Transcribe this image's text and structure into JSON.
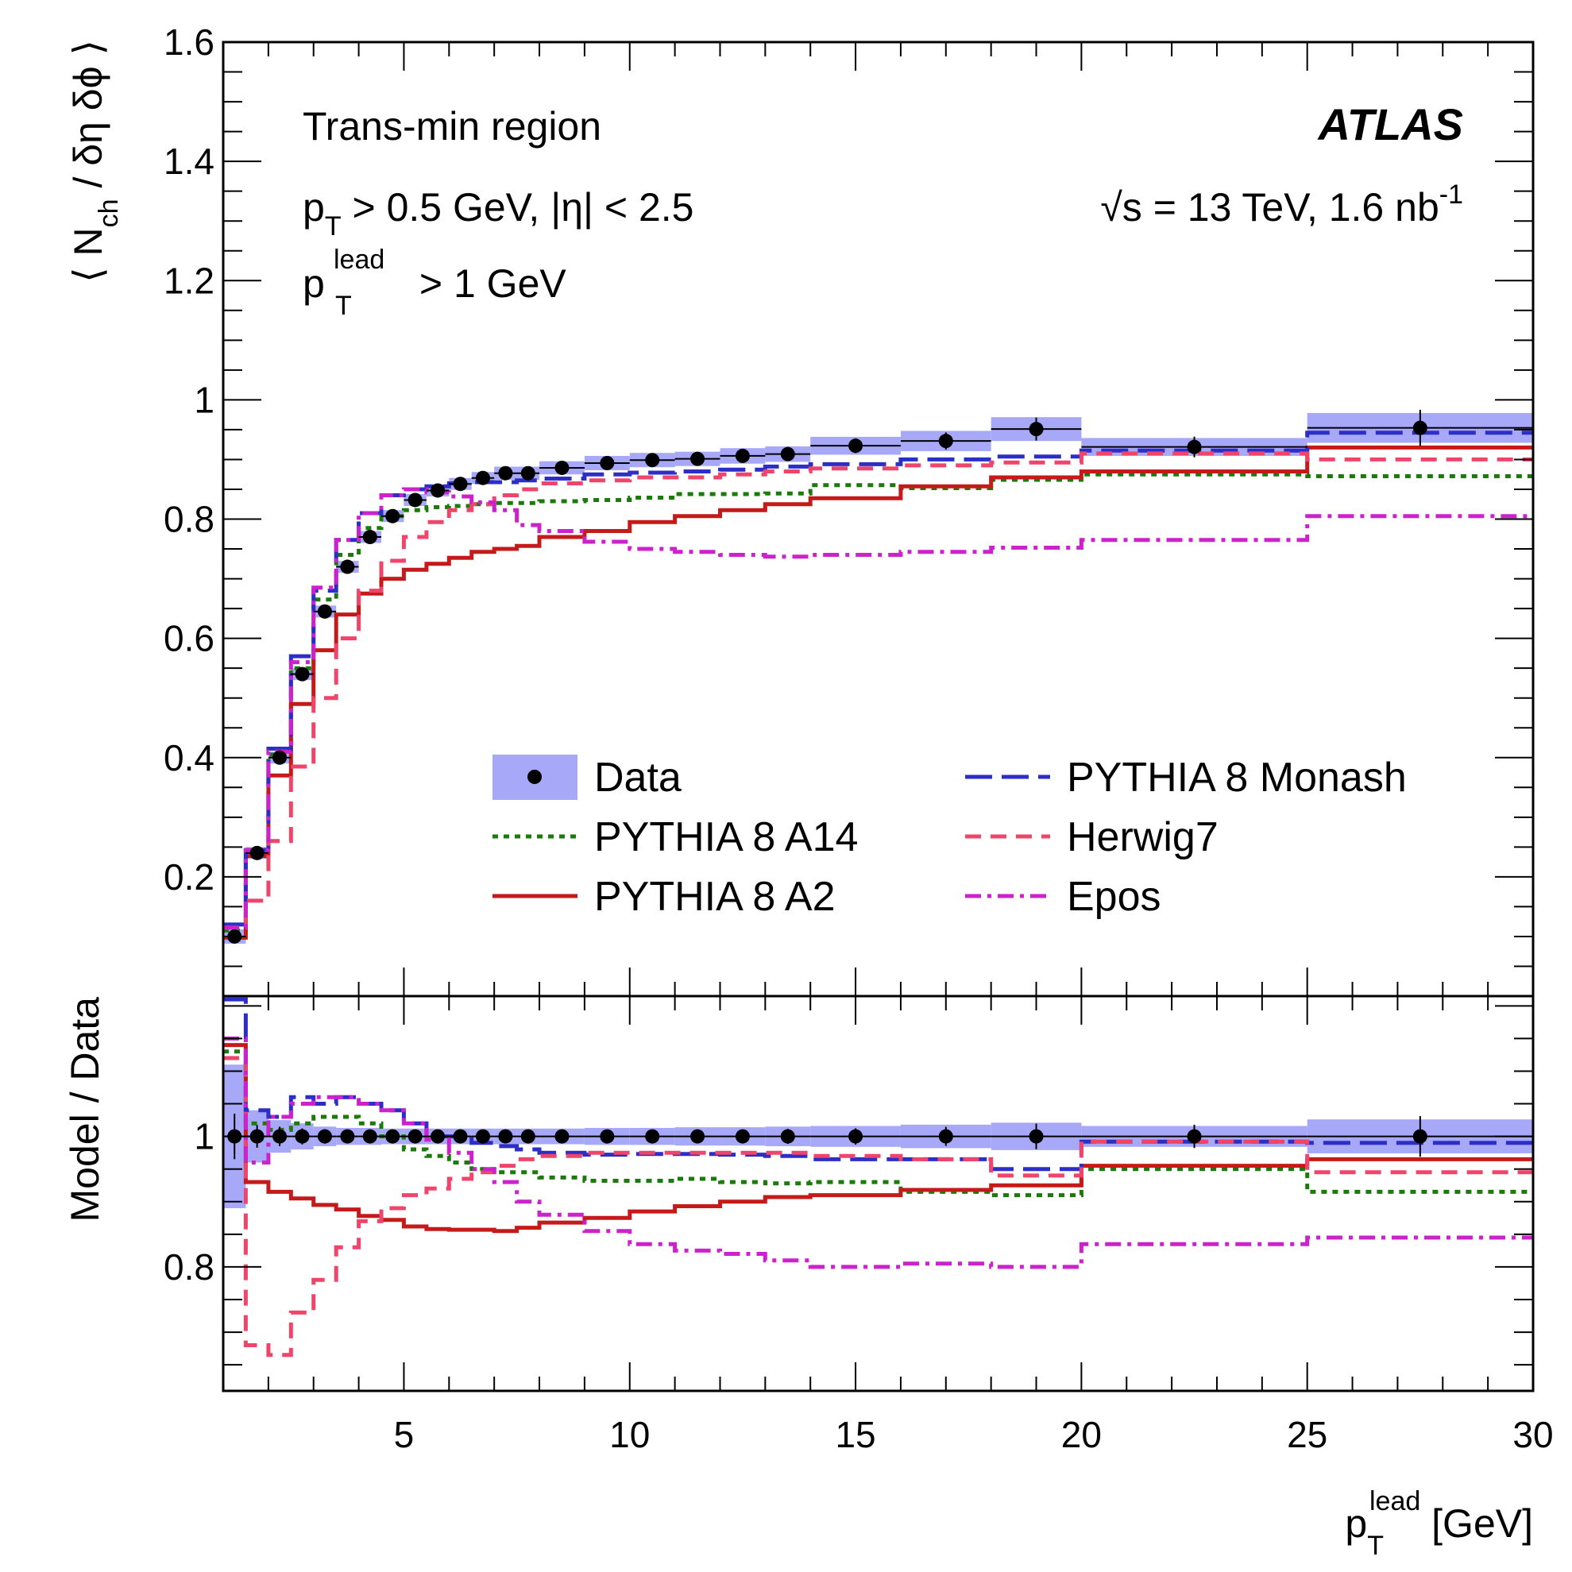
{
  "chart_data": {
    "type": "line",
    "title": "",
    "experiment_label": "ATLAS",
    "annotations": {
      "region": "Trans-min region",
      "cut_pt": "p",
      "cut_pt_sub": "T",
      "cut_rest": " > 0.5 GeV, |η| < 2.5",
      "cut_lead_p": "p",
      "cut_lead_sub": "T",
      "cut_lead_sup": "lead",
      "cut_lead_rest": " > 1 GeV",
      "energy_prefix": "√s = 13 TeV, 1.6 nb",
      "energy_exp": "-1"
    },
    "xlabel": {
      "main": "p",
      "sub": "T",
      "sup": "lead",
      "unit": " [GeV]"
    },
    "ylabel_top": {
      "open": "⟨ N",
      "sub": "ch",
      "rest": " / δη δϕ ⟩"
    },
    "ylabel_bottom": "Model / Data",
    "xlim": [
      1,
      30
    ],
    "ylim_top": [
      0,
      1.6
    ],
    "ylim_bottom": [
      0.61,
      1.215
    ],
    "xticks": [
      5,
      10,
      15,
      20,
      25,
      30
    ],
    "xtick_labels": [
      "5",
      "10",
      "15",
      "20",
      "25",
      "30"
    ],
    "yticks_top": [
      0.2,
      0.4,
      0.6,
      0.8,
      1.0,
      1.2,
      1.4,
      1.6
    ],
    "ytick_labels_top": [
      "0.2",
      "0.4",
      "0.6",
      "0.8",
      "1",
      "1.2",
      "1.4",
      "1.6"
    ],
    "yticks_bottom": [
      0.8,
      1.0
    ],
    "ytick_labels_bottom": [
      "0.8",
      "1"
    ],
    "bin_edges": [
      1,
      1.5,
      2,
      2.5,
      3,
      3.5,
      4,
      4.5,
      5,
      5.5,
      6,
      6.5,
      7,
      7.5,
      8,
      9,
      10,
      11,
      12,
      13,
      14,
      16,
      18,
      20,
      25,
      30
    ],
    "data": {
      "name": "Data",
      "x": [
        1.25,
        1.75,
        2.25,
        2.75,
        3.25,
        3.75,
        4.25,
        4.75,
        5.25,
        5.75,
        6.25,
        6.75,
        7.25,
        7.75,
        8.5,
        9.5,
        10.5,
        11.5,
        12.5,
        13.5,
        15,
        17,
        19,
        22.5,
        27.5
      ],
      "y": [
        0.1,
        0.24,
        0.4,
        0.54,
        0.645,
        0.72,
        0.77,
        0.805,
        0.832,
        0.848,
        0.859,
        0.869,
        0.877,
        0.877,
        0.886,
        0.894,
        0.899,
        0.901,
        0.906,
        0.909,
        0.923,
        0.931,
        0.951,
        0.921,
        0.953
      ],
      "band": [
        0.012,
        0.01,
        0.01,
        0.01,
        0.01,
        0.01,
        0.01,
        0.01,
        0.01,
        0.01,
        0.01,
        0.01,
        0.011,
        0.011,
        0.011,
        0.012,
        0.012,
        0.012,
        0.013,
        0.013,
        0.015,
        0.017,
        0.02,
        0.015,
        0.025
      ],
      "yerr": [
        0.003,
        0.003,
        0.004,
        0.004,
        0.004,
        0.004,
        0.004,
        0.004,
        0.004,
        0.004,
        0.004,
        0.004,
        0.004,
        0.004,
        0.004,
        0.005,
        0.005,
        0.005,
        0.005,
        0.006,
        0.007,
        0.009,
        0.014,
        0.012,
        0.025
      ],
      "ratio_band": [
        0.11,
        0.04,
        0.025,
        0.02,
        0.015,
        0.013,
        0.013,
        0.012,
        0.012,
        0.012,
        0.012,
        0.012,
        0.012,
        0.012,
        0.012,
        0.013,
        0.013,
        0.014,
        0.014,
        0.015,
        0.016,
        0.018,
        0.021,
        0.016,
        0.026
      ]
    },
    "series": [
      {
        "name": "PYTHIA 8 A14",
        "style": "dotted",
        "color": "#1a7a0a",
        "values": [
          0.11,
          0.245,
          0.405,
          0.55,
          0.665,
          0.74,
          0.785,
          0.805,
          0.815,
          0.82,
          0.822,
          0.825,
          0.827,
          0.827,
          0.83,
          0.832,
          0.836,
          0.842,
          0.842,
          0.843,
          0.857,
          0.852,
          0.866,
          0.875,
          0.872
        ],
        "ratio": [
          1.13,
          1.02,
          1.01,
          1.02,
          1.03,
          1.03,
          1.02,
          1.0,
          0.98,
          0.97,
          0.96,
          0.95,
          0.945,
          0.945,
          0.937,
          0.932,
          0.932,
          0.935,
          0.93,
          0.928,
          0.93,
          0.915,
          0.91,
          0.95,
          0.915
        ]
      },
      {
        "name": "PYTHIA 8 A2",
        "style": "solid",
        "color": "#c41a1a",
        "values": [
          0.098,
          0.235,
          0.37,
          0.49,
          0.58,
          0.64,
          0.675,
          0.7,
          0.715,
          0.725,
          0.735,
          0.745,
          0.75,
          0.755,
          0.77,
          0.78,
          0.795,
          0.805,
          0.815,
          0.825,
          0.835,
          0.855,
          0.87,
          0.88,
          0.92
        ],
        "ratio": [
          1.14,
          0.93,
          0.915,
          0.905,
          0.895,
          0.888,
          0.878,
          0.872,
          0.862,
          0.858,
          0.857,
          0.857,
          0.855,
          0.86,
          0.868,
          0.875,
          0.885,
          0.893,
          0.9,
          0.907,
          0.91,
          0.918,
          0.925,
          0.955,
          0.965
        ]
      },
      {
        "name": "PYTHIA 8 Monash",
        "style": "longdash",
        "color": "#2d2dc8",
        "values": [
          0.12,
          0.245,
          0.415,
          0.57,
          0.68,
          0.765,
          0.81,
          0.84,
          0.85,
          0.855,
          0.86,
          0.862,
          0.862,
          0.865,
          0.868,
          0.875,
          0.878,
          0.88,
          0.883,
          0.888,
          0.892,
          0.9,
          0.905,
          0.915,
          0.945
        ],
        "ratio": [
          1.21,
          1.04,
          1.03,
          1.06,
          1.05,
          1.06,
          1.05,
          1.04,
          1.02,
          1.0,
          1.0,
          0.99,
          0.985,
          0.98,
          0.975,
          0.972,
          0.973,
          0.973,
          0.972,
          0.97,
          0.965,
          0.965,
          0.95,
          0.992,
          0.99
        ]
      },
      {
        "name": "Herwig7",
        "style": "dashed",
        "color": "#f0456a",
        "values": [
          0.115,
          0.16,
          0.26,
          0.385,
          0.5,
          0.6,
          0.68,
          0.73,
          0.77,
          0.795,
          0.815,
          0.825,
          0.84,
          0.85,
          0.86,
          0.865,
          0.87,
          0.87,
          0.875,
          0.88,
          0.885,
          0.89,
          0.895,
          0.91,
          0.9
        ],
        "ratio": [
          1.12,
          0.68,
          0.665,
          0.73,
          0.78,
          0.83,
          0.87,
          0.89,
          0.91,
          0.92,
          0.935,
          0.945,
          0.955,
          0.965,
          0.97,
          0.975,
          0.975,
          0.975,
          0.975,
          0.975,
          0.97,
          0.965,
          0.94,
          0.992,
          0.945
        ]
      },
      {
        "name": "Epos",
        "style": "dashdot",
        "color": "#cc22cc",
        "values": [
          0.115,
          0.245,
          0.41,
          0.56,
          0.685,
          0.765,
          0.81,
          0.84,
          0.85,
          0.845,
          0.838,
          0.828,
          0.815,
          0.79,
          0.78,
          0.762,
          0.75,
          0.745,
          0.74,
          0.737,
          0.74,
          0.745,
          0.752,
          0.765,
          0.805
        ],
        "ratio": [
          1.15,
          0.96,
          1.03,
          1.05,
          1.06,
          1.06,
          1.05,
          1.04,
          1.02,
          0.995,
          0.975,
          0.95,
          0.93,
          0.9,
          0.88,
          0.855,
          0.835,
          0.825,
          0.82,
          0.81,
          0.8,
          0.805,
          0.8,
          0.835,
          0.845
        ]
      }
    ],
    "legend": {
      "position": "center-right",
      "columns": 2,
      "order": [
        "Data",
        "PYTHIA 8 A14",
        "PYTHIA 8 A2",
        "PYTHIA 8 Monash",
        "Herwig7",
        "Epos"
      ]
    }
  },
  "colors": {
    "band": "#a8a8f8",
    "markers": "#000000"
  }
}
